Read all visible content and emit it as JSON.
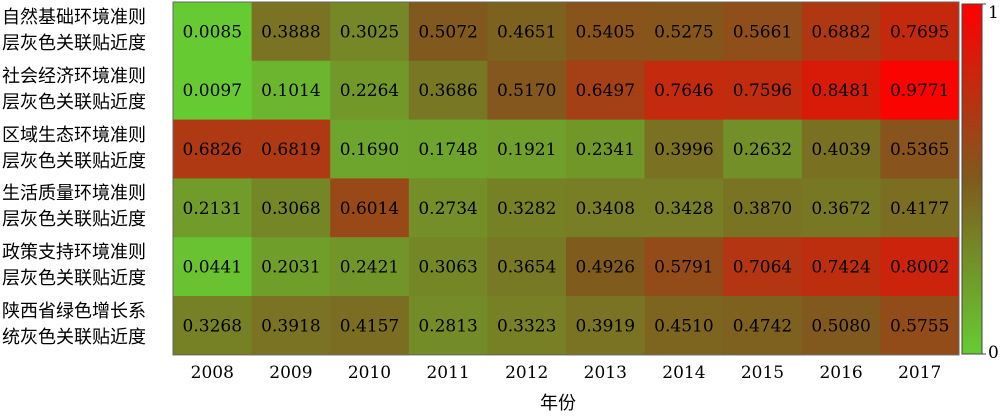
{
  "chart_data": {
    "type": "heatmap",
    "title": "",
    "xlabel": "年份",
    "ylabel": "",
    "x_categories": [
      "2008",
      "2009",
      "2010",
      "2011",
      "2012",
      "2013",
      "2014",
      "2015",
      "2016",
      "2017"
    ],
    "rows": [
      {
        "label_lines": [
          "自然基础环境准则",
          "层灰色关联贴近度"
        ],
        "values": [
          "0.0085",
          "0.3888",
          "0.3025",
          "0.5072",
          "0.4651",
          "0.5405",
          "0.5275",
          "0.5661",
          "0.6882",
          "0.7695"
        ]
      },
      {
        "label_lines": [
          "社会经济环境准则",
          "层灰色关联贴近度"
        ],
        "values": [
          "0.0097",
          "0.1014",
          "0.2264",
          "0.3686",
          "0.5170",
          "0.6497",
          "0.7646",
          "0.7596",
          "0.8481",
          "0.9771"
        ]
      },
      {
        "label_lines": [
          "区域生态环境准则",
          "层灰色关联贴近度"
        ],
        "values": [
          "0.6826",
          "0.6819",
          "0.1690",
          "0.1748",
          "0.1921",
          "0.2341",
          "0.3996",
          "0.2632",
          "0.4039",
          "0.5365"
        ]
      },
      {
        "label_lines": [
          "生活质量环境准则",
          "层灰色关联贴近度"
        ],
        "values": [
          "0.2131",
          "0.3068",
          "0.6014",
          "0.2734",
          "0.3282",
          "0.3408",
          "0.3428",
          "0.3870",
          "0.3672",
          "0.4177"
        ]
      },
      {
        "label_lines": [
          "政策支持环境准则",
          "层灰色关联贴近度"
        ],
        "values": [
          "0.0441",
          "0.2031",
          "0.2421",
          "0.3063",
          "0.3654",
          "0.4926",
          "0.5791",
          "0.7064",
          "0.7424",
          "0.8002"
        ]
      },
      {
        "label_lines": [
          "陕西省绿色增长系",
          "统灰色关联贴近度"
        ],
        "values": [
          "0.3268",
          "0.3918",
          "0.4157",
          "0.2813",
          "0.3323",
          "0.3919",
          "0.4510",
          "0.4742",
          "0.5080",
          "0.5755"
        ]
      }
    ],
    "colorbar": {
      "min": 0,
      "max": 1,
      "tick_labels": [
        "1",
        "0"
      ],
      "low_color": "#66cc33",
      "mid_color": "#7f5a1e",
      "high_color": "#ff0000"
    },
    "value_range": [
      0,
      1
    ],
    "grid": false,
    "legend": "colorbar-right"
  }
}
